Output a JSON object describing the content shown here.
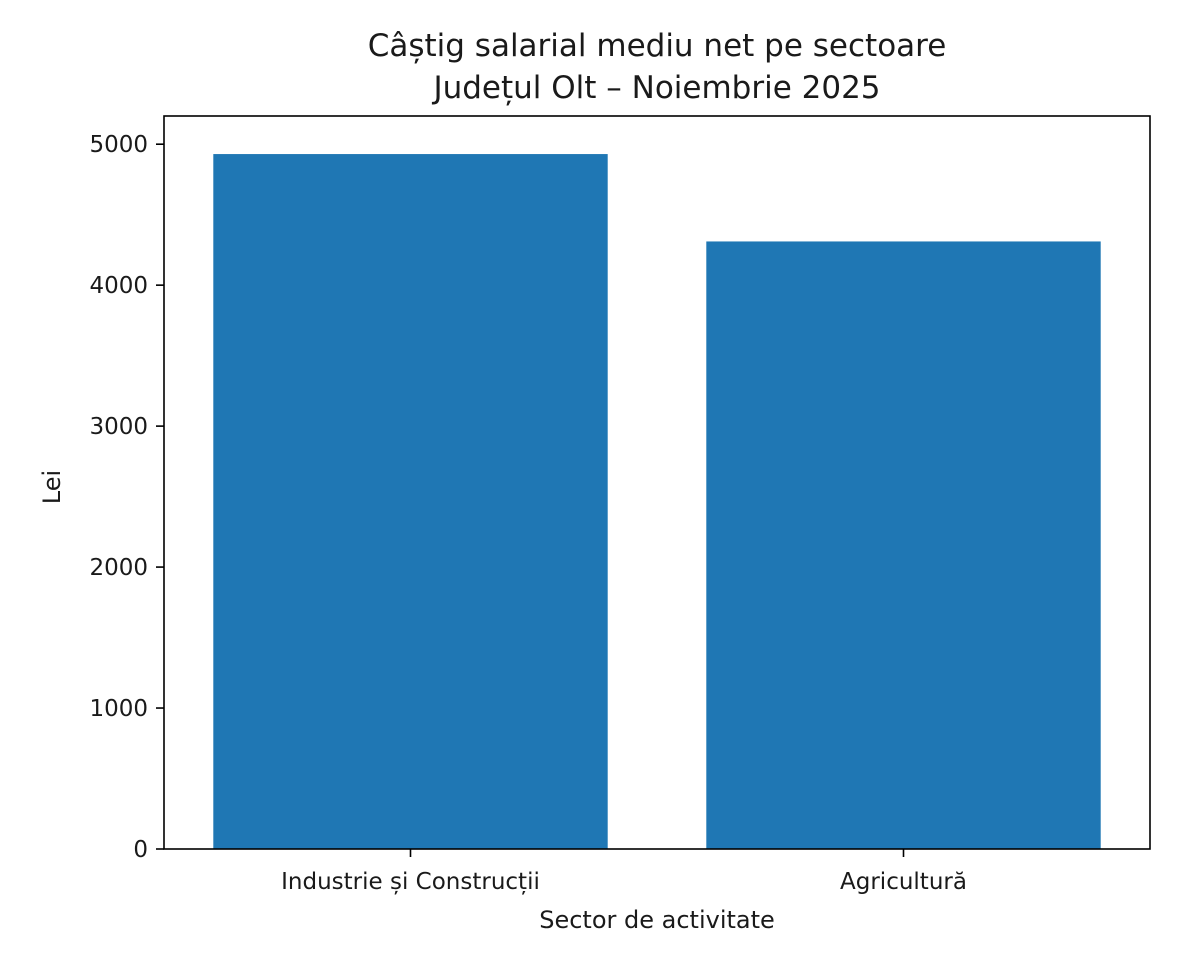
{
  "chart_data": {
    "type": "bar",
    "title": "Câștig salarial mediu net pe sectoare",
    "subtitle": "Județul Olt – Noiembrie 2025",
    "xlabel": "Sector de activitate",
    "ylabel": "Lei",
    "categories": [
      "Industrie și Construcții",
      "Agricultură"
    ],
    "values": [
      4930,
      4310
    ],
    "ylim": [
      0,
      5200
    ],
    "yticks": [
      0,
      1000,
      2000,
      3000,
      4000,
      5000
    ],
    "grid": false,
    "bar_color": "#1f77b4",
    "legend": null
  }
}
